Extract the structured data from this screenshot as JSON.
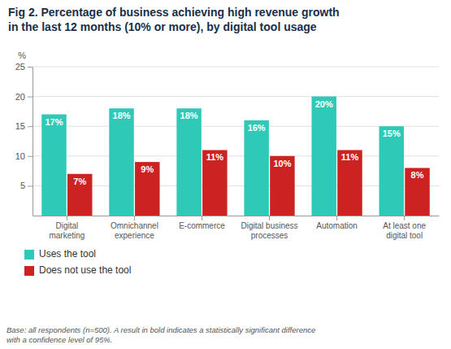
{
  "chart_data": {
    "type": "bar",
    "title": "Fig 2. Percentage of business achieving high revenue growth\nin the last 12 months (10% or more), by digital tool usage",
    "categories": [
      "Digital\nmarketing",
      "Omnichannel\nexperience",
      "E-commerce",
      "Digital business\nprocesses",
      "Automation",
      "At least one\ndigital tool"
    ],
    "series": [
      {
        "name": "Uses the tool",
        "color": "#2ECAB7",
        "values": [
          17,
          18,
          18,
          16,
          20,
          15
        ],
        "value_labels": [
          "17%",
          "18%",
          "18%",
          "16%",
          "20%",
          "15%"
        ]
      },
      {
        "name": "Does not use the tool",
        "color": "#CC2222",
        "values": [
          7,
          9,
          11,
          10,
          11,
          8
        ],
        "value_labels": [
          "7%",
          "9%",
          "11%",
          "10%",
          "11%",
          "8%"
        ]
      }
    ],
    "y_label": "%",
    "ylim": [
      0,
      25
    ],
    "yticks": [
      5,
      10,
      15,
      20,
      25
    ],
    "grid": true,
    "legend": "bottom",
    "data_labels": true,
    "footnote": "Base: all respondents (n=500). A result in bold indicates a statistically significant difference\nwith a confidence level of 95%."
  }
}
